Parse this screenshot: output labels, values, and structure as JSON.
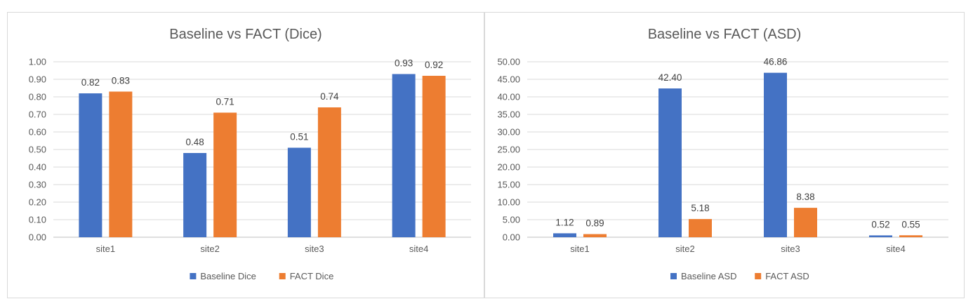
{
  "charts": [
    {
      "chart_data": {
        "type": "bar",
        "title": "Baseline  vs FACT (Dice)",
        "categories": [
          "site1",
          "site2",
          "site3",
          "site4"
        ],
        "series": [
          {
            "name": "Baseline Dice",
            "color": "#4472C4",
            "values": [
              0.82,
              0.48,
              0.51,
              0.93
            ],
            "labels": [
              "0.82",
              "0.48",
              "0.51",
              "0.93"
            ]
          },
          {
            "name": "FACT Dice",
            "color": "#ED7D31",
            "values": [
              0.83,
              0.71,
              0.74,
              0.92
            ],
            "labels": [
              "0.83",
              "0.71",
              "0.74",
              "0.92"
            ]
          }
        ],
        "ylim": [
          0,
          1.0
        ],
        "yticks": [
          "0.00",
          "0.10",
          "0.20",
          "0.30",
          "0.40",
          "0.50",
          "0.60",
          "0.70",
          "0.80",
          "0.90",
          "1.00"
        ],
        "grid": true,
        "legend": "bottom"
      }
    },
    {
      "chart_data": {
        "type": "bar",
        "title": "Baseline vs FACT (ASD)",
        "categories": [
          "site1",
          "site2",
          "site3",
          "site4"
        ],
        "series": [
          {
            "name": "Baseline ASD",
            "color": "#4472C4",
            "values": [
              1.12,
              42.4,
              46.86,
              0.52
            ],
            "labels": [
              "1.12",
              "42.40",
              "46.86",
              "0.52"
            ]
          },
          {
            "name": "FACT ASD",
            "color": "#ED7D31",
            "values": [
              0.89,
              5.18,
              8.38,
              0.55
            ],
            "labels": [
              "0.89",
              "5.18",
              "8.38",
              "0.55"
            ]
          }
        ],
        "ylim": [
          0,
          50
        ],
        "yticks": [
          "0.00",
          "5.00",
          "10.00",
          "15.00",
          "20.00",
          "25.00",
          "30.00",
          "35.00",
          "40.00",
          "45.00",
          "50.00"
        ],
        "grid": true,
        "legend": "bottom"
      }
    }
  ]
}
